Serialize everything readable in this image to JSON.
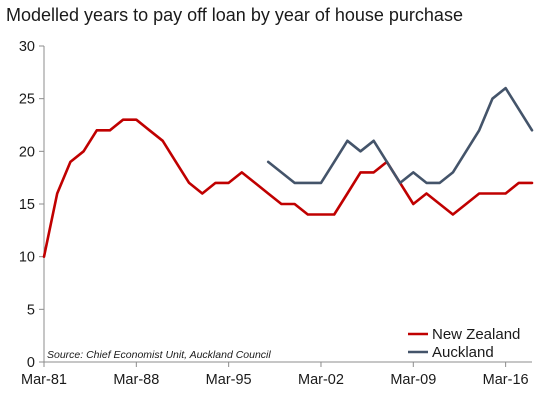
{
  "chart_data": {
    "type": "line",
    "title": "Modelled years to pay off loan by year of house purchase",
    "xlabel": "",
    "ylabel": "",
    "ylim": [
      0,
      30
    ],
    "yticks": [
      "0",
      "5",
      "10",
      "15",
      "20",
      "25",
      "30"
    ],
    "x_tick_labels": [
      "Mar-81",
      "Mar-88",
      "Mar-95",
      "Mar-02",
      "Mar-09",
      "Mar-16"
    ],
    "x_tick_years": [
      1981,
      1988,
      1995,
      2002,
      2009,
      2016
    ],
    "grid": false,
    "legend_position": "bottom-right",
    "source": "Source: Chief Economist Unit, Auckland Council",
    "series": [
      {
        "name": "New Zealand",
        "color": "#c00000",
        "x": [
          1981,
          1982,
          1983,
          1984,
          1985,
          1986,
          1987,
          1988,
          1989,
          1990,
          1991,
          1992,
          1993,
          1994,
          1995,
          1996,
          1997,
          1998,
          1999,
          2000,
          2001,
          2002,
          2003,
          2004,
          2005,
          2006,
          2007,
          2008,
          2009,
          2010,
          2011,
          2012,
          2013,
          2014,
          2015,
          2016,
          2017,
          2018
        ],
        "values": [
          10,
          16,
          19,
          20,
          22,
          22,
          23,
          23,
          22,
          21,
          19,
          17,
          16,
          17,
          17,
          18,
          17,
          16,
          15,
          15,
          14,
          14,
          14,
          16,
          18,
          18,
          19,
          17,
          15,
          16,
          15,
          14,
          15,
          16,
          16,
          16,
          17,
          17
        ]
      },
      {
        "name": "Auckland",
        "color": "#44546a",
        "x": [
          1998,
          1999,
          2000,
          2001,
          2002,
          2003,
          2004,
          2005,
          2006,
          2007,
          2008,
          2009,
          2010,
          2011,
          2012,
          2013,
          2014,
          2015,
          2016,
          2017,
          2018
        ],
        "values": [
          19,
          18,
          17,
          17,
          17,
          19,
          21,
          20,
          21,
          19,
          17,
          18,
          17,
          17,
          18,
          20,
          22,
          25,
          26,
          24,
          22
        ]
      }
    ]
  }
}
